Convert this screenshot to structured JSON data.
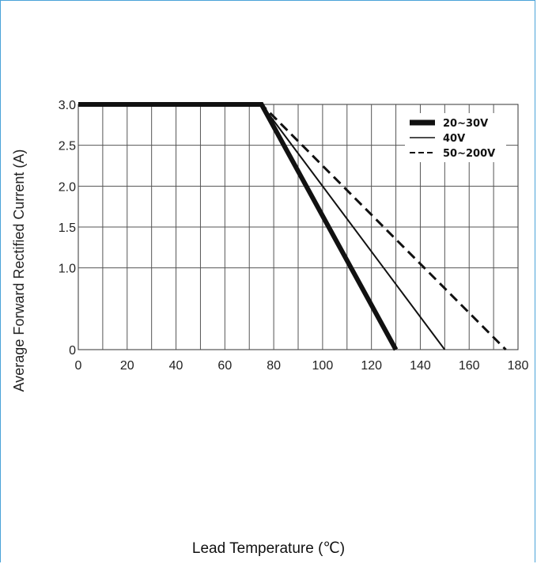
{
  "chart_data": {
    "type": "line",
    "title": "",
    "xlabel": "Lead Temperature (℃)",
    "ylabel": "Average Forward Rectified Current (A)",
    "xlim": [
      0,
      180
    ],
    "ylim": [
      0,
      3.0
    ],
    "x_ticks": [
      "0",
      "20",
      "40",
      "60",
      "80",
      "100",
      "120",
      "140",
      "160",
      "180"
    ],
    "y_ticks": [
      "0",
      "1.0",
      "1.5",
      "2.0",
      "2.5",
      "3.0"
    ],
    "grid": true,
    "legend_position": "top-right",
    "series": [
      {
        "name": "20~30V",
        "style": "thick",
        "x": [
          0,
          75,
          130
        ],
        "y": [
          3.0,
          3.0,
          0
        ]
      },
      {
        "name": "40V",
        "style": "thin",
        "x": [
          0,
          75,
          150
        ],
        "y": [
          3.0,
          3.0,
          0
        ]
      },
      {
        "name": "50~200V",
        "style": "dashed",
        "x": [
          0,
          75,
          175
        ],
        "y": [
          3.0,
          3.0,
          0
        ]
      }
    ]
  },
  "colors": {
    "frame": "#4aa3d8",
    "grid": "#555555",
    "series": "#111111"
  }
}
